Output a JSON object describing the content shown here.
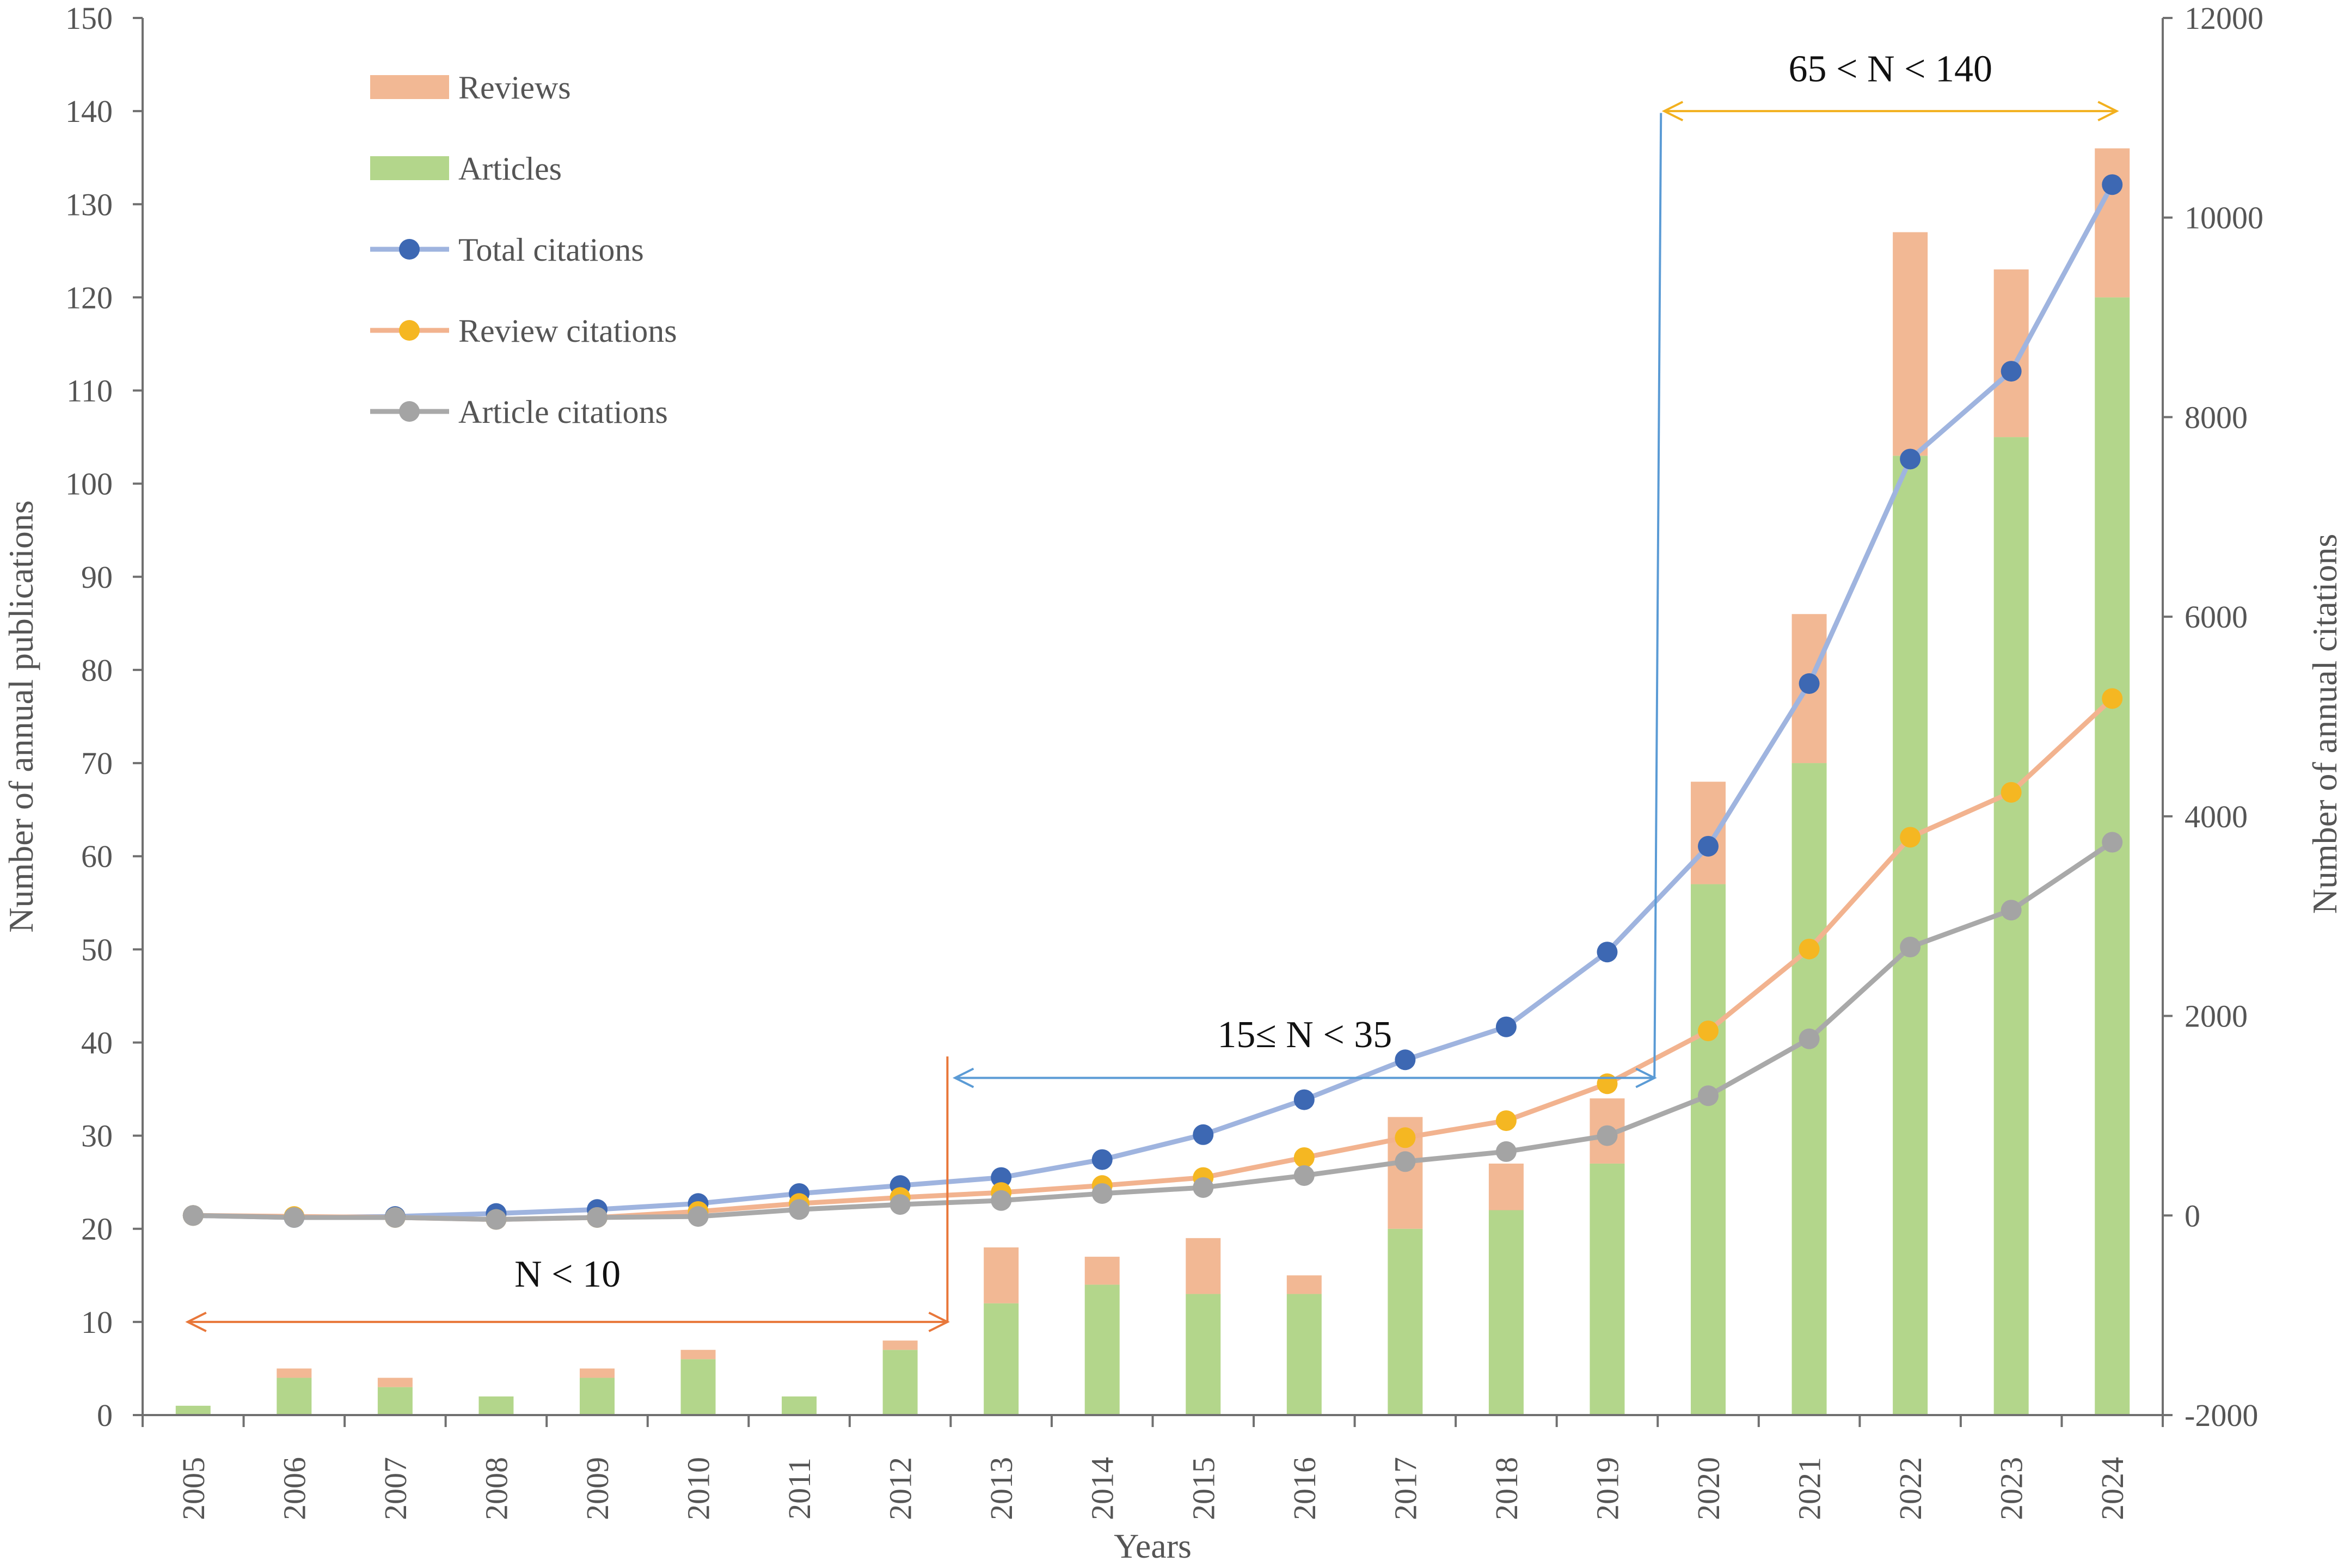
{
  "chart_data": {
    "type": "bar",
    "stacked": true,
    "xlabel": "Years",
    "ylabel_left": "Number of annual publications",
    "ylabel_right": "Number of annual citations",
    "ylim_left": [
      0,
      150
    ],
    "ylim_right": [
      -2000,
      12000
    ],
    "yticks_left": [
      0,
      10,
      20,
      30,
      40,
      50,
      60,
      70,
      80,
      90,
      100,
      110,
      120,
      130,
      140,
      150
    ],
    "yticks_right": [
      -2000,
      0,
      2000,
      4000,
      6000,
      8000,
      10000,
      12000
    ],
    "categories": [
      "2005",
      "2006",
      "2007",
      "2008",
      "2009",
      "2010",
      "2011",
      "2012",
      "2013",
      "2014",
      "2015",
      "2016",
      "2017",
      "2018",
      "2019",
      "2020",
      "2021",
      "2022",
      "2023",
      "2024"
    ],
    "bar_series": [
      {
        "name": "Articles",
        "color": "#b3d68b",
        "values": [
          1,
          4,
          3,
          2,
          4,
          6,
          2,
          7,
          12,
          14,
          13,
          13,
          20,
          22,
          27,
          57,
          70,
          103,
          105,
          120
        ]
      },
      {
        "name": "Reviews",
        "color": "#f2b894",
        "values": [
          0,
          1,
          1,
          0,
          1,
          1,
          0,
          1,
          6,
          3,
          6,
          2,
          12,
          5,
          7,
          11,
          16,
          24,
          18,
          16
        ]
      }
    ],
    "line_series": [
      {
        "name": "Total citations",
        "color": "#9fb4df",
        "marker": "#3d68b3",
        "values": [
          0,
          -20,
          -10,
          20,
          60,
          120,
          220,
          300,
          380,
          560,
          810,
          1160,
          1560,
          1890,
          2640,
          3700,
          5330,
          7580,
          8460,
          10330
        ]
      },
      {
        "name": "Review citations",
        "color": "#f2b38f",
        "marker": "#f5b722",
        "values": [
          0,
          -10,
          -20,
          -40,
          -20,
          40,
          120,
          180,
          230,
          300,
          380,
          580,
          780,
          950,
          1320,
          1850,
          2670,
          3790,
          4240,
          5180
        ]
      },
      {
        "name": "Article citations",
        "color": "#a9a9a9",
        "marker": "#a4a4a4",
        "values": [
          0,
          -20,
          -20,
          -40,
          -20,
          -10,
          60,
          110,
          150,
          220,
          280,
          400,
          540,
          640,
          800,
          1200,
          1770,
          2690,
          3060,
          3740
        ]
      }
    ],
    "legend": {
      "position": "top-left",
      "entries": [
        "Reviews",
        "Articles",
        "Total citations",
        "Review citations",
        "Article citations"
      ]
    },
    "annotations": [
      {
        "label": "N < 10",
        "color": "#e8773a",
        "from": "2005",
        "to": "2012"
      },
      {
        "label": "15≤ N < 35",
        "color": "#5b9bd5",
        "from": "2013",
        "to": "2019"
      },
      {
        "label": "65 < N < 140",
        "color": "#f2b01e",
        "from": "2020",
        "to": "2024"
      }
    ]
  }
}
